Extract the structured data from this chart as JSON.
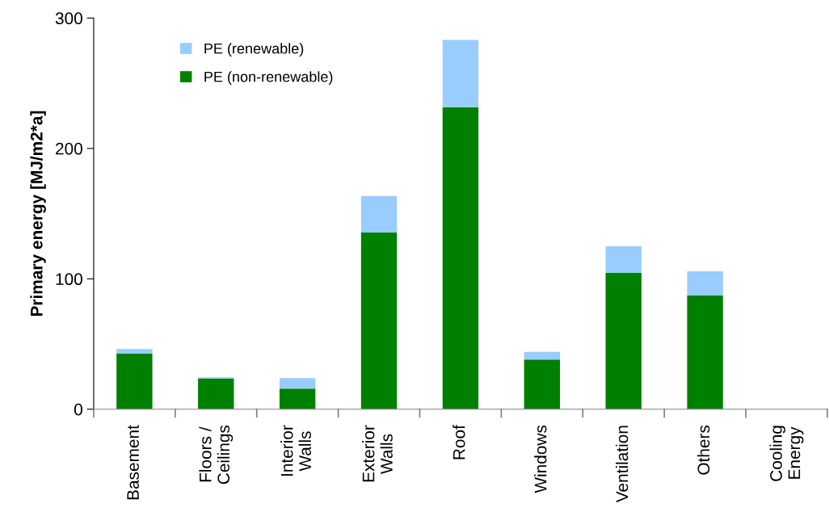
{
  "chart_data": {
    "type": "bar",
    "stacked": true,
    "ylabel": "Primary energy [MJ/m2*a]",
    "categories": [
      "Basement",
      "Floors /\nCeilings",
      "Interior\nWalls",
      "Exterior\nWalls",
      "Roof",
      "Windows",
      "Ventilation",
      "Others",
      "Cooling\nEnergy"
    ],
    "series": [
      {
        "name": "PE (non-renewable)",
        "color": "#008000",
        "values": [
          42.5,
          23.3,
          15.8,
          135.6,
          231.7,
          38,
          104.5,
          87.2,
          0
        ]
      },
      {
        "name": "PE (renewable)",
        "color": "#99ccff",
        "values": [
          3.7,
          1.2,
          8.1,
          27.9,
          51.5,
          6,
          20.5,
          18.6,
          0
        ]
      }
    ],
    "ylim": [
      0,
      300
    ],
    "yticks": [
      0,
      100,
      200,
      300
    ],
    "grid": false,
    "legend": "top left"
  }
}
